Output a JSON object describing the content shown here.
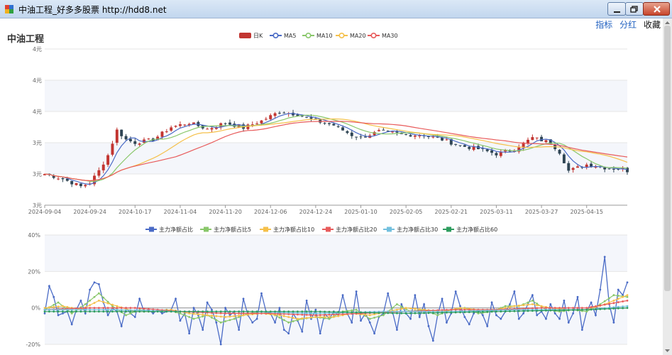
{
  "window": {
    "title": "中油工程_好多多股票  http://hdd8.net"
  },
  "toolbar": {
    "links": [
      "指标",
      "分红",
      "收藏"
    ]
  },
  "stock": {
    "name": "中油工程"
  },
  "colors": {
    "up": "#c23531",
    "down": "#2f4554",
    "ma5": "#4a6bc6",
    "ma10": "#89c76a",
    "ma20": "#f5c04a",
    "ma30": "#e85b5b",
    "flow": "#4a6bc6",
    "flow5": "#89c76a",
    "flow10": "#f5c04a",
    "flow20": "#e85b5b",
    "flow30": "#73c0de",
    "flow60": "#2e9c5e"
  },
  "chart_data": [
    {
      "type": "candlestick",
      "legend": [
        "日K",
        "MA5",
        "MA10",
        "MA20",
        "MA30"
      ],
      "y_ticks": [
        "3元",
        "3元",
        "3元",
        "4元",
        "4元",
        "4元"
      ],
      "ylim": [
        2.5,
        5.0
      ],
      "x_ticks": [
        "2024-09-04",
        "2024-09-24",
        "2024-10-17",
        "2024-11-04",
        "2024-11-20",
        "2024-12-06",
        "2024-12-24",
        "2025-01-10",
        "2025-02-05",
        "2025-02-21",
        "2025-03-11",
        "2025-03-27",
        "2025-04-15"
      ],
      "x_tick_index": [
        0,
        10,
        20,
        30,
        40,
        50,
        60,
        70,
        80,
        90,
        100,
        110,
        120
      ],
      "num_days": 130,
      "anchors": [
        [
          0,
          3.0
        ],
        [
          4,
          2.92
        ],
        [
          8,
          2.8
        ],
        [
          10,
          2.86
        ],
        [
          12,
          3.05
        ],
        [
          14,
          3.3
        ],
        [
          16,
          3.7
        ],
        [
          18,
          3.55
        ],
        [
          20,
          3.5
        ],
        [
          24,
          3.55
        ],
        [
          28,
          3.75
        ],
        [
          32,
          3.82
        ],
        [
          36,
          3.72
        ],
        [
          40,
          3.82
        ],
        [
          44,
          3.74
        ],
        [
          48,
          3.85
        ],
        [
          52,
          4.0
        ],
        [
          56,
          3.95
        ],
        [
          60,
          3.85
        ],
        [
          64,
          3.78
        ],
        [
          68,
          3.62
        ],
        [
          70,
          3.58
        ],
        [
          74,
          3.68
        ],
        [
          80,
          3.63
        ],
        [
          84,
          3.62
        ],
        [
          88,
          3.55
        ],
        [
          92,
          3.45
        ],
        [
          96,
          3.4
        ],
        [
          100,
          3.32
        ],
        [
          104,
          3.4
        ],
        [
          108,
          3.58
        ],
        [
          112,
          3.5
        ],
        [
          114,
          3.35
        ],
        [
          116,
          3.05
        ],
        [
          120,
          3.15
        ],
        [
          124,
          3.1
        ],
        [
          128,
          3.08
        ],
        [
          129,
          3.05
        ]
      ],
      "series": [
        {
          "name": "日K"
        },
        {
          "name": "MA5",
          "window": 5
        },
        {
          "name": "MA10",
          "window": 10
        },
        {
          "name": "MA20",
          "window": 20
        },
        {
          "name": "MA30",
          "window": 30
        }
      ]
    },
    {
      "type": "line",
      "legend": [
        "主力净额占比",
        "主力净额占比5",
        "主力净额占比10",
        "主力净额占比20",
        "主力净额占比30",
        "主力净额占比60"
      ],
      "y_ticks": [
        "-20%",
        "0%",
        "20%",
        "40%"
      ],
      "ylim": [
        -20,
        40
      ],
      "x": "same as candlestick chart",
      "series": [
        {
          "name": "主力净额占比",
          "anchors": [
            [
              0,
              -3
            ],
            [
              1,
              12
            ],
            [
              2,
              6
            ],
            [
              3,
              -4
            ],
            [
              5,
              -2
            ],
            [
              6,
              -9
            ],
            [
              7,
              -1
            ],
            [
              8,
              4
            ],
            [
              9,
              -3
            ],
            [
              10,
              10
            ],
            [
              11,
              14
            ],
            [
              12,
              13
            ],
            [
              13,
              3
            ],
            [
              14,
              -4
            ],
            [
              15,
              0
            ],
            [
              16,
              -2
            ],
            [
              17,
              -10
            ],
            [
              18,
              0
            ],
            [
              19,
              -3
            ],
            [
              20,
              -5
            ],
            [
              21,
              5
            ],
            [
              22,
              -2
            ],
            [
              23,
              -1
            ],
            [
              24,
              -3
            ],
            [
              25,
              -1
            ],
            [
              26,
              -3
            ],
            [
              27,
              -2
            ],
            [
              28,
              -1
            ],
            [
              29,
              5
            ],
            [
              30,
              -7
            ],
            [
              31,
              -3
            ],
            [
              32,
              -14
            ],
            [
              33,
              0
            ],
            [
              34,
              -4
            ],
            [
              35,
              -12
            ],
            [
              36,
              3
            ],
            [
              37,
              -1
            ],
            [
              38,
              -8
            ],
            [
              39,
              -20
            ],
            [
              40,
              0
            ],
            [
              41,
              -4
            ],
            [
              42,
              -2
            ],
            [
              43,
              -12
            ],
            [
              44,
              5
            ],
            [
              45,
              -4
            ],
            [
              46,
              -8
            ],
            [
              47,
              -6
            ],
            [
              48,
              8
            ],
            [
              49,
              -2
            ],
            [
              50,
              -3
            ],
            [
              51,
              -8
            ],
            [
              52,
              0
            ],
            [
              53,
              -12
            ],
            [
              54,
              -14
            ],
            [
              55,
              -3
            ],
            [
              56,
              -7
            ],
            [
              57,
              -13
            ],
            [
              58,
              4
            ],
            [
              59,
              -6
            ],
            [
              60,
              -1
            ],
            [
              61,
              -14
            ],
            [
              62,
              -3
            ],
            [
              63,
              -6
            ],
            [
              64,
              -2
            ],
            [
              65,
              -4
            ],
            [
              66,
              7
            ],
            [
              67,
              -3
            ],
            [
              68,
              -8
            ],
            [
              69,
              9
            ],
            [
              70,
              -7
            ],
            [
              71,
              -3
            ],
            [
              72,
              -8
            ],
            [
              73,
              -14
            ],
            [
              74,
              -5
            ],
            [
              75,
              -3
            ],
            [
              76,
              8
            ],
            [
              77,
              -2
            ],
            [
              78,
              -12
            ],
            [
              79,
              2
            ],
            [
              80,
              -3
            ],
            [
              81,
              -6
            ],
            [
              82,
              7
            ],
            [
              83,
              -5
            ],
            [
              84,
              2
            ],
            [
              85,
              -10
            ],
            [
              86,
              -18
            ],
            [
              87,
              -4
            ],
            [
              88,
              5
            ],
            [
              89,
              -8
            ],
            [
              90,
              -3
            ],
            [
              91,
              9
            ],
            [
              92,
              1
            ],
            [
              93,
              -5
            ],
            [
              94,
              -9
            ],
            [
              95,
              -3
            ],
            [
              96,
              -1
            ],
            [
              97,
              -4
            ],
            [
              98,
              -10
            ],
            [
              99,
              3
            ],
            [
              100,
              -4
            ],
            [
              101,
              -6
            ],
            [
              102,
              -2
            ],
            [
              103,
              2
            ],
            [
              104,
              9
            ],
            [
              105,
              -6
            ],
            [
              106,
              -3
            ],
            [
              107,
              2
            ],
            [
              108,
              7
            ],
            [
              109,
              -4
            ],
            [
              110,
              -2
            ],
            [
              111,
              -6
            ],
            [
              112,
              2
            ],
            [
              113,
              -3
            ],
            [
              114,
              -6
            ],
            [
              115,
              4
            ],
            [
              116,
              -8
            ],
            [
              117,
              -3
            ],
            [
              118,
              6
            ],
            [
              119,
              -12
            ],
            [
              120,
              -2
            ],
            [
              121,
              3
            ],
            [
              122,
              -4
            ],
            [
              123,
              10
            ],
            [
              124,
              28
            ],
            [
              125,
              2
            ],
            [
              126,
              -8
            ],
            [
              127,
              10
            ],
            [
              128,
              7
            ],
            [
              129,
              14
            ]
          ]
        },
        {
          "name": "主力净额占比5",
          "anchors": [
            [
              0,
              -1
            ],
            [
              3,
              3
            ],
            [
              6,
              -3
            ],
            [
              9,
              2
            ],
            [
              12,
              8
            ],
            [
              15,
              1
            ],
            [
              18,
              -4
            ],
            [
              21,
              -1
            ],
            [
              24,
              -2
            ],
            [
              27,
              -1
            ],
            [
              30,
              -3
            ],
            [
              33,
              -6
            ],
            [
              36,
              -4
            ],
            [
              39,
              -8
            ],
            [
              42,
              -6
            ],
            [
              45,
              -3
            ],
            [
              48,
              -2
            ],
            [
              51,
              -4
            ],
            [
              54,
              -8
            ],
            [
              57,
              -6
            ],
            [
              60,
              -5
            ],
            [
              63,
              -6
            ],
            [
              66,
              -2
            ],
            [
              69,
              -1
            ],
            [
              72,
              -6
            ],
            [
              75,
              -4
            ],
            [
              78,
              2
            ],
            [
              81,
              -2
            ],
            [
              84,
              -1
            ],
            [
              87,
              -4
            ],
            [
              90,
              -1
            ],
            [
              93,
              0
            ],
            [
              96,
              -3
            ],
            [
              99,
              -2
            ],
            [
              102,
              1
            ],
            [
              105,
              1
            ],
            [
              108,
              4
            ],
            [
              111,
              -1
            ],
            [
              114,
              -2
            ],
            [
              117,
              -1
            ],
            [
              120,
              -2
            ],
            [
              123,
              2
            ],
            [
              126,
              7
            ],
            [
              129,
              6
            ]
          ]
        },
        {
          "name": "主力净额占比10",
          "anchors": [
            [
              0,
              0
            ],
            [
              4,
              1
            ],
            [
              8,
              -1
            ],
            [
              12,
              4
            ],
            [
              16,
              1
            ],
            [
              20,
              -2
            ],
            [
              24,
              -2
            ],
            [
              28,
              -1
            ],
            [
              32,
              -3
            ],
            [
              36,
              -4
            ],
            [
              40,
              -5
            ],
            [
              44,
              -4
            ],
            [
              48,
              -3
            ],
            [
              52,
              -4
            ],
            [
              56,
              -6
            ],
            [
              60,
              -5
            ],
            [
              64,
              -5
            ],
            [
              68,
              -3
            ],
            [
              72,
              -4
            ],
            [
              76,
              -2
            ],
            [
              80,
              0
            ],
            [
              84,
              -1
            ],
            [
              88,
              -2
            ],
            [
              92,
              0
            ],
            [
              96,
              -1
            ],
            [
              100,
              -1
            ],
            [
              104,
              1
            ],
            [
              108,
              2
            ],
            [
              112,
              0
            ],
            [
              116,
              -1
            ],
            [
              120,
              -1
            ],
            [
              124,
              2
            ],
            [
              129,
              7
            ]
          ]
        },
        {
          "name": "主力净额占比20",
          "anchors": [
            [
              0,
              -1
            ],
            [
              10,
              0
            ],
            [
              20,
              0
            ],
            [
              30,
              -2
            ],
            [
              40,
              -3
            ],
            [
              50,
              -3
            ],
            [
              60,
              -4
            ],
            [
              70,
              -3
            ],
            [
              80,
              -2
            ],
            [
              90,
              -1
            ],
            [
              100,
              -1
            ],
            [
              110,
              0
            ],
            [
              120,
              0
            ],
            [
              129,
              4
            ]
          ]
        },
        {
          "name": "主力净额占比30",
          "anchors": [
            [
              0,
              -1
            ],
            [
              15,
              -1
            ],
            [
              30,
              -2
            ],
            [
              45,
              -2
            ],
            [
              60,
              -3
            ],
            [
              75,
              -2
            ],
            [
              90,
              -2
            ],
            [
              105,
              -1
            ],
            [
              120,
              -1
            ],
            [
              129,
              1
            ]
          ]
        },
        {
          "name": "主力净额占比60",
          "anchors": [
            [
              0,
              -2
            ],
            [
              20,
              -2
            ],
            [
              40,
              -2
            ],
            [
              60,
              -2
            ],
            [
              80,
              -3
            ],
            [
              100,
              -2
            ],
            [
              120,
              -1
            ],
            [
              129,
              0
            ]
          ]
        }
      ]
    }
  ]
}
